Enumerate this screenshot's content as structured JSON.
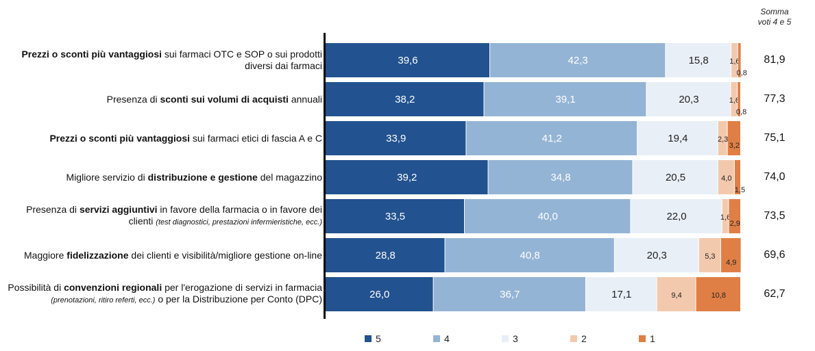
{
  "chart_data": {
    "type": "bar",
    "orientation": "horizontal",
    "stacked": true,
    "xlim": [
      0,
      100
    ],
    "sum_title": "Somma voti 4 e 5",
    "categories": [
      [
        {
          "t": "Prezzi o sconti più vantaggiosi",
          "s": "b"
        },
        {
          "t": " sui farmaci OTC e SOP o sui prodotti diversi dai farmaci",
          "s": ""
        }
      ],
      [
        {
          "t": "Presenza di ",
          "s": ""
        },
        {
          "t": "sconti sui volumi di acquisti",
          "s": "b"
        },
        {
          "t": " annuali",
          "s": ""
        }
      ],
      [
        {
          "t": "Prezzi o sconti più vantaggiosi",
          "s": "b"
        },
        {
          "t": " sui farmaci etici di fascia A e C",
          "s": ""
        }
      ],
      [
        {
          "t": "Migliore servizio di ",
          "s": ""
        },
        {
          "t": "distribuzione e gestione",
          "s": "b"
        },
        {
          "t": " del magazzino",
          "s": ""
        }
      ],
      [
        {
          "t": "Presenza di ",
          "s": ""
        },
        {
          "t": "servizi aggiuntivi",
          "s": "b"
        },
        {
          "t": " in favore della farmacia o in favore dei clienti ",
          "s": ""
        },
        {
          "t": "(test diagnostici, prestazioni infermieristiche, ecc.)",
          "s": "i"
        }
      ],
      [
        {
          "t": "Maggiore ",
          "s": ""
        },
        {
          "t": "fidelizzazione",
          "s": "b"
        },
        {
          "t": " dei clienti e visibilità/migliore gestione on-line",
          "s": ""
        }
      ],
      [
        {
          "t": "Possibilità di ",
          "s": ""
        },
        {
          "t": "convenzioni regionali",
          "s": "b"
        },
        {
          "t": " per l'erogazione di servizi in farmacia ",
          "s": ""
        },
        {
          "t": "(prenotazioni, ritiro referti, ecc.)",
          "s": "i"
        },
        {
          "t": " o per la Distribuzione per Conto (DPC)",
          "s": ""
        }
      ]
    ],
    "series": [
      {
        "name": "5",
        "color": "#22528f",
        "values": [
          39.6,
          38.2,
          33.9,
          39.2,
          33.5,
          28.8,
          26.0
        ],
        "labels": [
          "39,6",
          "38,2",
          "33,9",
          "39,2",
          "33,5",
          "28,8",
          "26,0"
        ]
      },
      {
        "name": "4",
        "color": "#94b4d5",
        "values": [
          42.3,
          39.1,
          41.2,
          34.8,
          40.0,
          40.8,
          36.7
        ],
        "labels": [
          "42,3",
          "39,1",
          "41,2",
          "34,8",
          "40,0",
          "40,8",
          "36,7"
        ]
      },
      {
        "name": "3",
        "color": "#e9eff6",
        "values": [
          15.8,
          20.3,
          19.4,
          20.5,
          22.0,
          20.3,
          17.1
        ],
        "labels": [
          "15,8",
          "20,3",
          "19,4",
          "20,5",
          "22,0",
          "20,3",
          "17,1"
        ]
      },
      {
        "name": "2",
        "color": "#f3c9ae",
        "values": [
          1.6,
          1.6,
          2.3,
          4.0,
          1.6,
          5.3,
          9.4
        ],
        "labels": [
          "1,6",
          "1,6",
          "2,3",
          "4,0",
          "1,6",
          "5,3",
          "9,4"
        ]
      },
      {
        "name": "1",
        "color": "#e07f45",
        "values": [
          0.8,
          0.8,
          3.2,
          1.5,
          2.9,
          4.9,
          10.8
        ],
        "labels": [
          "0,8",
          "0,8",
          "3,2",
          "1,5",
          "2,9",
          "4,9",
          "10,8"
        ]
      }
    ],
    "sum_4_5": [
      "81,9",
      "77,3",
      "75,1",
      "74,0",
      "73,5",
      "69,6",
      "62,7"
    ],
    "legend_position": "bottom"
  }
}
